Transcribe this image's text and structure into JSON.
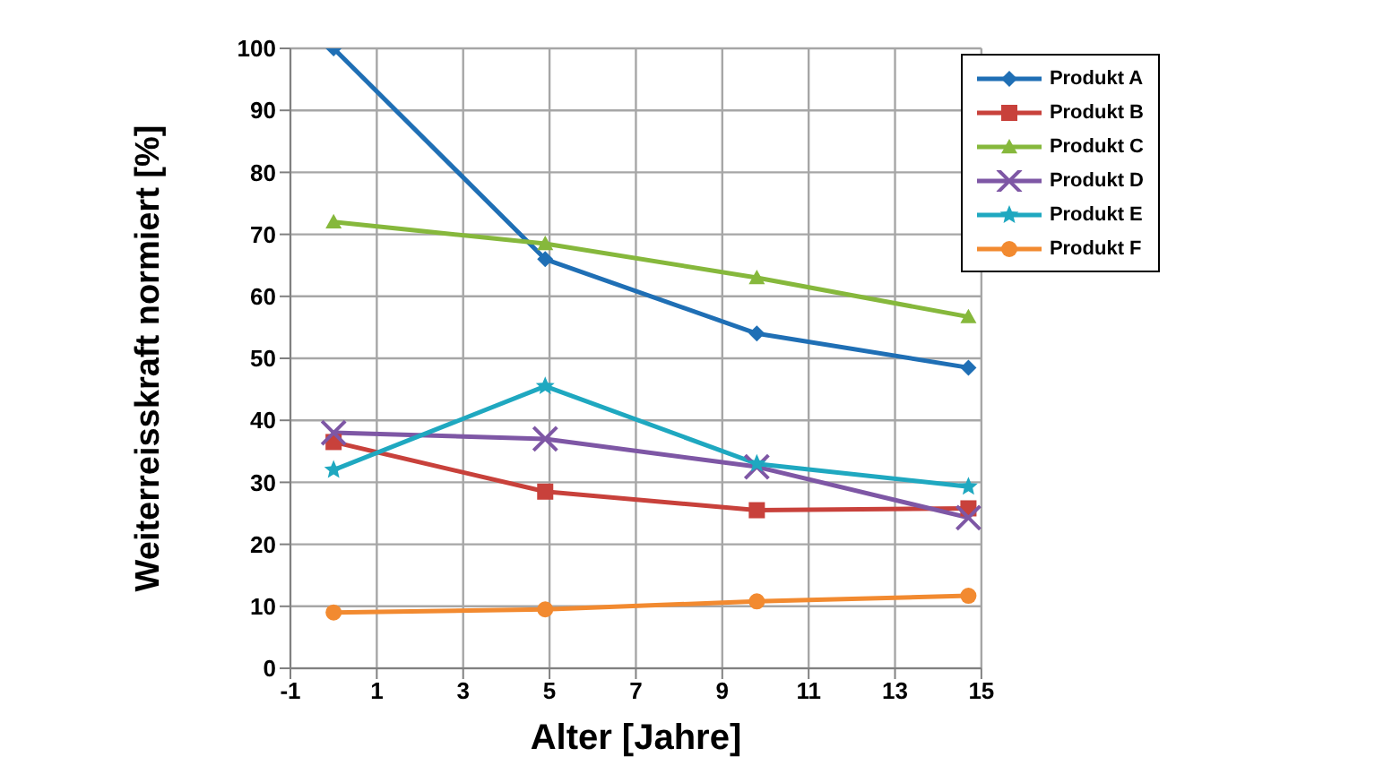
{
  "chart_data": {
    "type": "line",
    "xlabel": "Alter [Jahre]",
    "ylabel": "Weiterreisskraft normiert [%]",
    "xlim": [
      -1,
      15
    ],
    "xticks": [
      -1,
      1,
      3,
      5,
      7,
      9,
      11,
      13,
      15
    ],
    "ylim": [
      0,
      100
    ],
    "yticks": [
      0,
      10,
      20,
      30,
      40,
      50,
      60,
      70,
      80,
      90,
      100
    ],
    "grid": true,
    "legend": "top right",
    "line_style": "solid",
    "series": [
      {
        "name": "Produkt A",
        "color": "#1f6fb5",
        "marker": "diamond",
        "x": [
          0,
          4.9,
          9.8,
          14.7
        ],
        "values": [
          100,
          66,
          54,
          48.5
        ]
      },
      {
        "name": "Produkt B",
        "color": "#c8413b",
        "marker": "square",
        "x": [
          0,
          4.9,
          9.8,
          14.7
        ],
        "values": [
          36.5,
          28.5,
          25.5,
          25.8
        ]
      },
      {
        "name": "Produkt C",
        "color": "#86b83c",
        "marker": "triangle",
        "x": [
          0,
          4.9,
          9.8,
          14.7
        ],
        "values": [
          72,
          68.5,
          63,
          56.7
        ]
      },
      {
        "name": "Produkt D",
        "color": "#7e57a5",
        "marker": "cross",
        "x": [
          0,
          4.9,
          9.8,
          14.7
        ],
        "values": [
          38,
          37,
          32.5,
          24.3
        ]
      },
      {
        "name": "Produkt E",
        "color": "#1fa8c0",
        "marker": "star",
        "x": [
          0,
          4.9,
          9.8,
          14.7
        ],
        "values": [
          32,
          45.5,
          33,
          29.3
        ]
      },
      {
        "name": "Produkt F",
        "color": "#f28a30",
        "marker": "circle",
        "x": [
          0,
          4.9,
          9.8,
          14.7
        ],
        "values": [
          9,
          9.5,
          10.8,
          11.7
        ]
      }
    ]
  }
}
